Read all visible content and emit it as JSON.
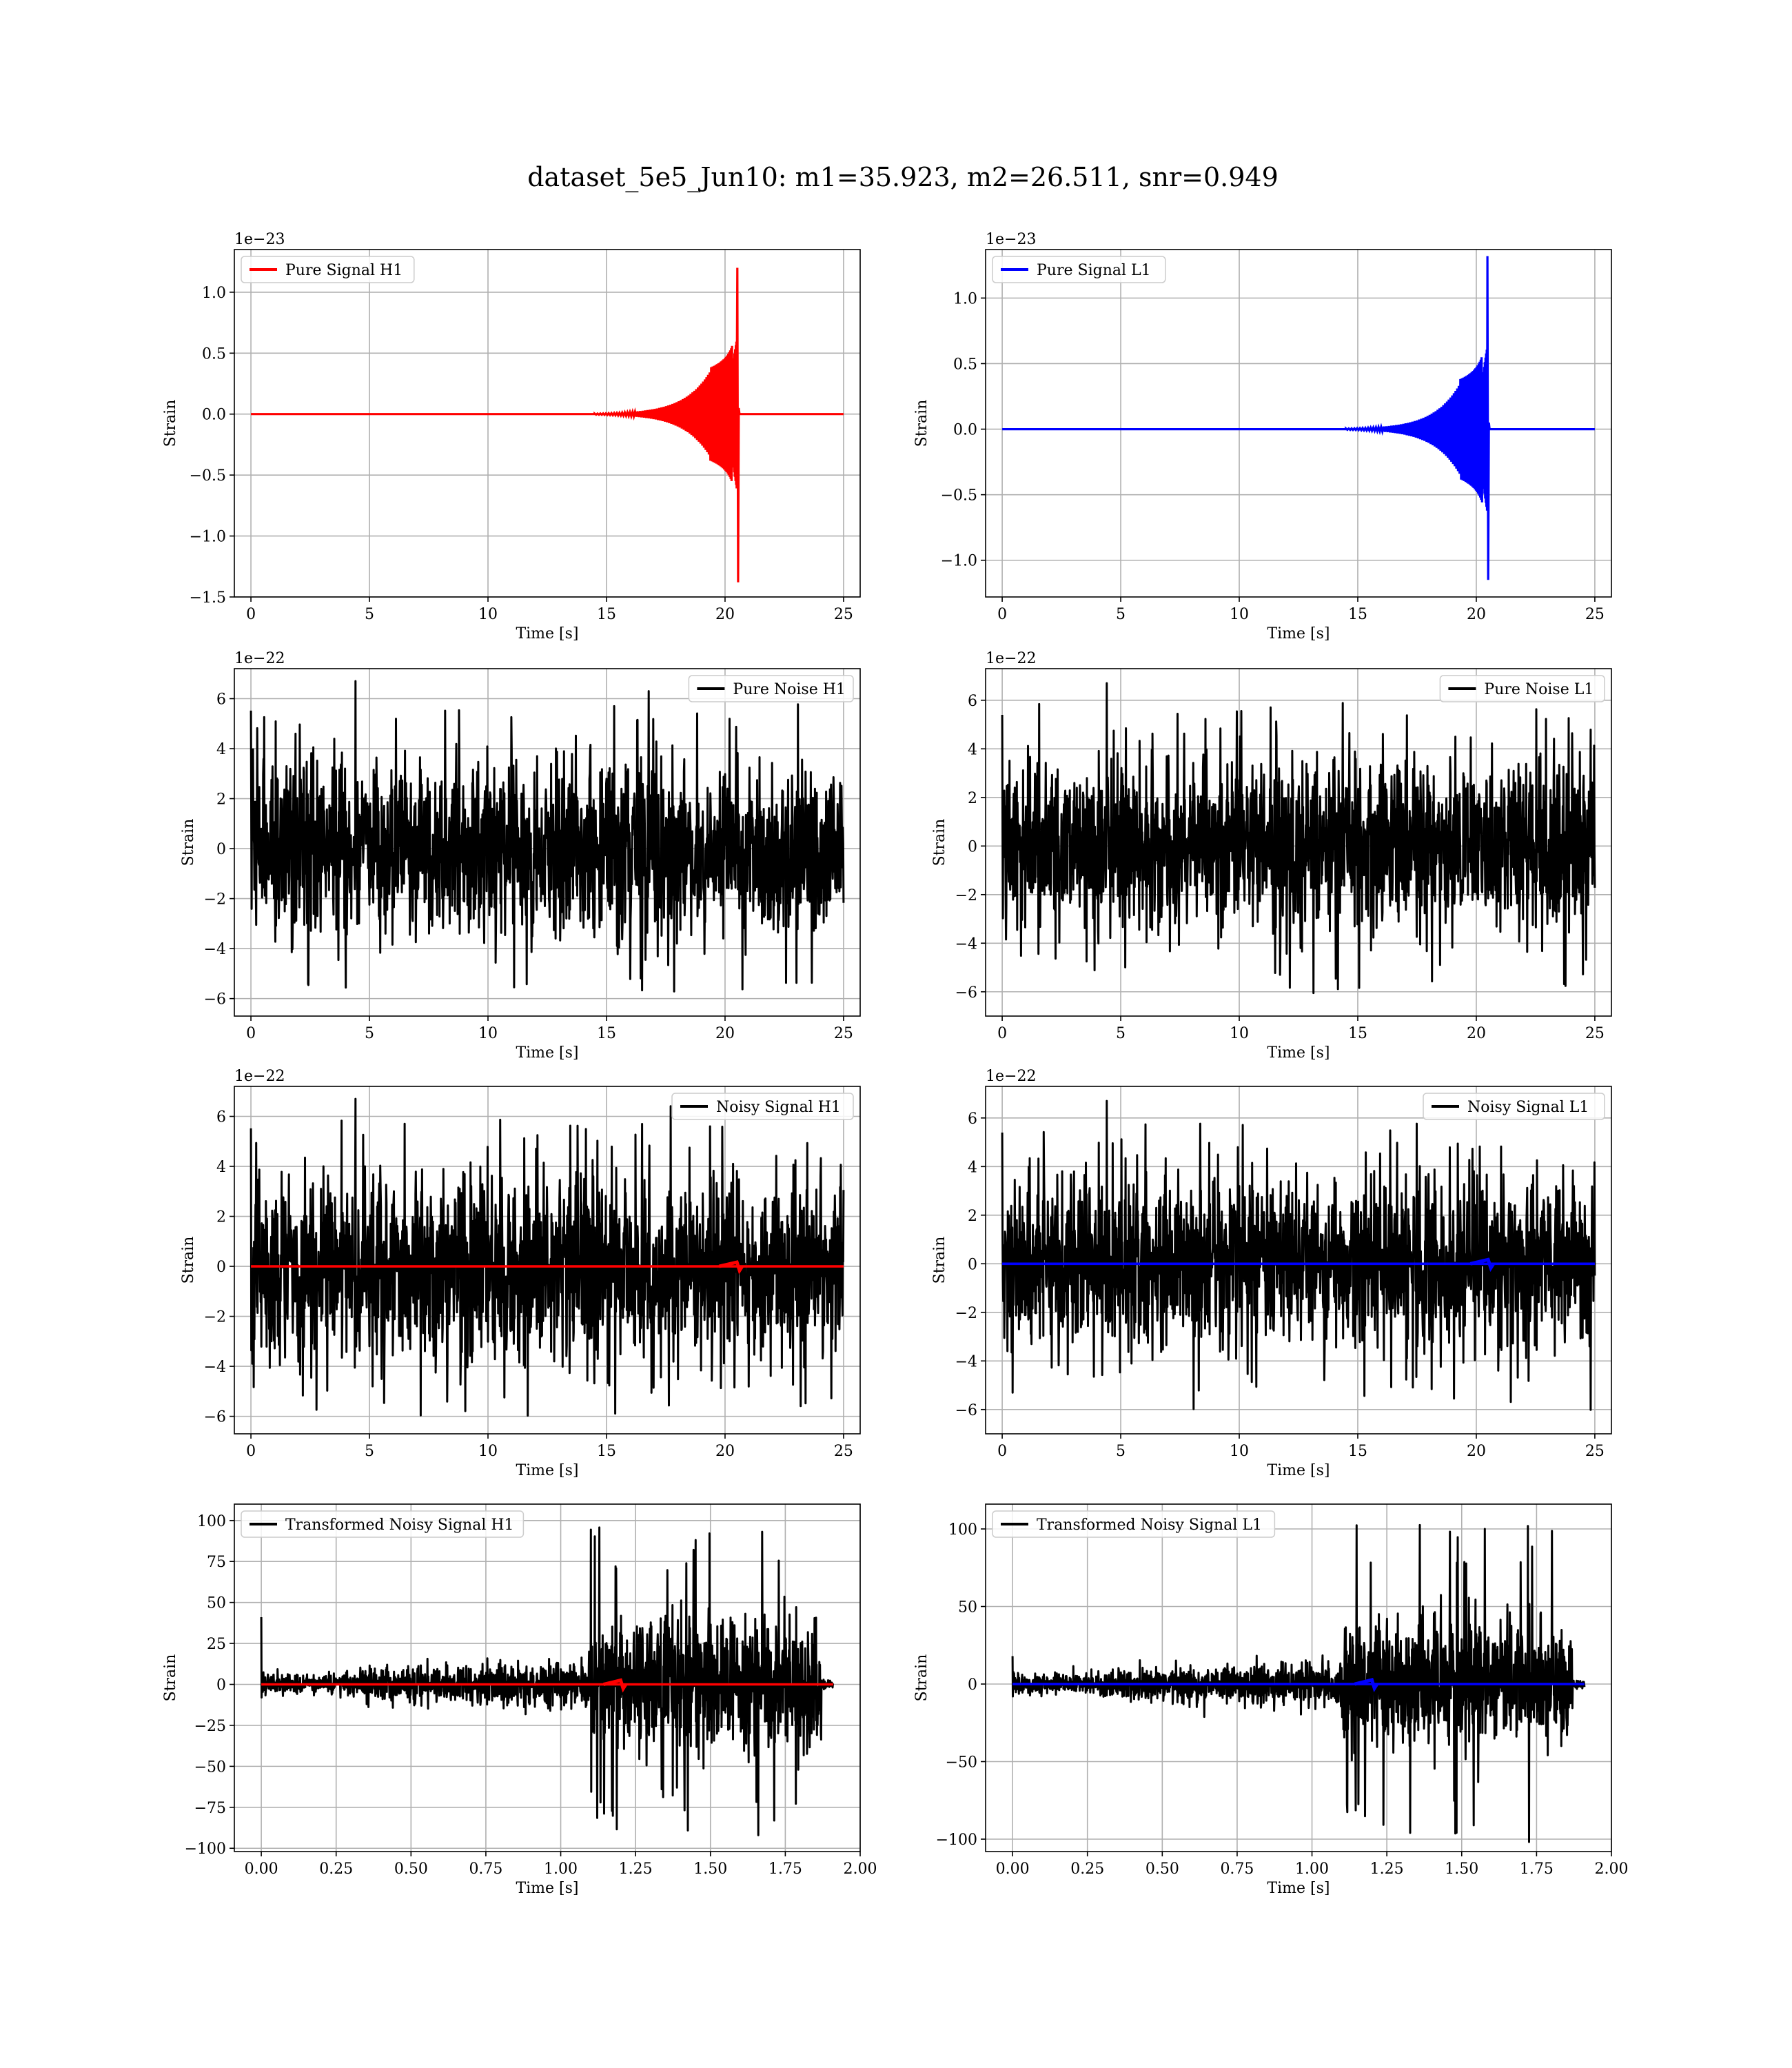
{
  "figure": {
    "title": "dataset_5e5_Jun10: m1=35.923, m2=26.511, snr=0.949"
  },
  "colors": {
    "h1_signal": "#ff0000",
    "l1_signal": "#0000ff",
    "noise": "#000000",
    "grid": "#b0b0b0",
    "frame": "#000000"
  },
  "chart_data": [
    {
      "id": "pure-signal-h1",
      "type": "line",
      "xlabel": "Time [s]",
      "ylabel": "Strain",
      "offset_text": "1e−23",
      "xlim": [
        -0.7,
        25.7
      ],
      "ylim": [
        -1.5,
        1.35
      ],
      "xticks": [
        0,
        5,
        10,
        15,
        20,
        25
      ],
      "xtick_labels": [
        "0",
        "5",
        "10",
        "15",
        "20",
        "25"
      ],
      "yticks": [
        -1.5,
        -1.0,
        -0.5,
        0.0,
        0.5,
        1.0
      ],
      "ytick_labels": [
        "−1.5",
        "−1.0",
        "−0.5",
        "0.0",
        "0.5",
        "1.0"
      ],
      "grid": true,
      "legend_position": "upper-left",
      "series": [
        {
          "name": "Pure Signal H1",
          "color": "#ff0000",
          "kind": "chirp",
          "x_range": [
            0,
            25
          ],
          "merger_time": 20.55,
          "peak_pos": 1.2,
          "peak_neg": -1.38,
          "envelope_mid": 0.38
        }
      ]
    },
    {
      "id": "pure-signal-l1",
      "type": "line",
      "xlabel": "Time [s]",
      "ylabel": "Strain",
      "offset_text": "1e−23",
      "xlim": [
        -0.7,
        25.7
      ],
      "ylim": [
        -1.28,
        1.37
      ],
      "xticks": [
        0,
        5,
        10,
        15,
        20,
        25
      ],
      "xtick_labels": [
        "0",
        "5",
        "10",
        "15",
        "20",
        "25"
      ],
      "yticks": [
        -1.0,
        -0.5,
        0.0,
        0.5,
        1.0
      ],
      "ytick_labels": [
        "−1.0",
        "−0.5",
        "0.0",
        "0.5",
        "1.0"
      ],
      "grid": true,
      "legend_position": "upper-left",
      "series": [
        {
          "name": "Pure Signal L1",
          "color": "#0000ff",
          "kind": "chirp",
          "x_range": [
            0,
            25
          ],
          "merger_time": 20.5,
          "peak_pos": 1.32,
          "peak_neg": -1.15,
          "envelope_mid": 0.38
        }
      ]
    },
    {
      "id": "pure-noise-h1",
      "type": "line",
      "xlabel": "Time [s]",
      "ylabel": "Strain",
      "offset_text": "1e−22",
      "xlim": [
        -0.7,
        25.7
      ],
      "ylim": [
        -6.7,
        7.2
      ],
      "xticks": [
        0,
        5,
        10,
        15,
        20,
        25
      ],
      "xtick_labels": [
        "0",
        "5",
        "10",
        "15",
        "20",
        "25"
      ],
      "yticks": [
        -6,
        -4,
        -2,
        0,
        2,
        4,
        6
      ],
      "ytick_labels": [
        "−6",
        "−4",
        "−2",
        "0",
        "2",
        "4",
        "6"
      ],
      "grid": true,
      "legend_position": "upper-right",
      "series": [
        {
          "name": "Pure Noise H1",
          "color": "#000000",
          "kind": "noise",
          "x_range": [
            0,
            25
          ],
          "typical_max": 4.6,
          "extreme_max": 6.7,
          "extreme_min": -6.0
        }
      ]
    },
    {
      "id": "pure-noise-l1",
      "type": "line",
      "xlabel": "Time [s]",
      "ylabel": "Strain",
      "offset_text": "1e−22",
      "xlim": [
        -0.7,
        25.7
      ],
      "ylim": [
        -7.0,
        7.3
      ],
      "xticks": [
        0,
        5,
        10,
        15,
        20,
        25
      ],
      "xtick_labels": [
        "0",
        "5",
        "10",
        "15",
        "20",
        "25"
      ],
      "yticks": [
        -6,
        -4,
        -2,
        0,
        2,
        4,
        6
      ],
      "ytick_labels": [
        "−6",
        "−4",
        "−2",
        "0",
        "2",
        "4",
        "6"
      ],
      "grid": true,
      "legend_position": "upper-right",
      "series": [
        {
          "name": "Pure Noise L1",
          "color": "#000000",
          "kind": "noise",
          "x_range": [
            0,
            25
          ],
          "typical_max": 4.5,
          "extreme_max": 6.7,
          "extreme_min": -6.3
        }
      ]
    },
    {
      "id": "noisy-signal-h1",
      "type": "line",
      "xlabel": "Time [s]",
      "ylabel": "Strain",
      "offset_text": "1e−22",
      "xlim": [
        -0.7,
        25.7
      ],
      "ylim": [
        -6.7,
        7.2
      ],
      "xticks": [
        0,
        5,
        10,
        15,
        20,
        25
      ],
      "xtick_labels": [
        "0",
        "5",
        "10",
        "15",
        "20",
        "25"
      ],
      "yticks": [
        -6,
        -4,
        -2,
        0,
        2,
        4,
        6
      ],
      "ytick_labels": [
        "−6",
        "−4",
        "−2",
        "0",
        "2",
        "4",
        "6"
      ],
      "grid": true,
      "legend_position": "upper-right",
      "series": [
        {
          "name": "Noisy Signal H1",
          "color": "#000000",
          "kind": "noise",
          "x_range": [
            0,
            25
          ],
          "typical_max": 4.6,
          "extreme_max": 6.7,
          "extreme_min": -6.0
        },
        {
          "name": "",
          "color": "#ff0000",
          "kind": "flat-signal",
          "x_range": [
            0,
            25
          ],
          "merger_time": 20.5
        }
      ]
    },
    {
      "id": "noisy-signal-l1",
      "type": "line",
      "xlabel": "Time [s]",
      "ylabel": "Strain",
      "offset_text": "1e−22",
      "xlim": [
        -0.7,
        25.7
      ],
      "ylim": [
        -7.0,
        7.3
      ],
      "xticks": [
        0,
        5,
        10,
        15,
        20,
        25
      ],
      "xtick_labels": [
        "0",
        "5",
        "10",
        "15",
        "20",
        "25"
      ],
      "yticks": [
        -6,
        -4,
        -2,
        0,
        2,
        4,
        6
      ],
      "ytick_labels": [
        "−6",
        "−4",
        "−2",
        "0",
        "2",
        "4",
        "6"
      ],
      "grid": true,
      "legend_position": "upper-right",
      "series": [
        {
          "name": "Noisy Signal L1",
          "color": "#000000",
          "kind": "noise",
          "x_range": [
            0,
            25
          ],
          "typical_max": 4.5,
          "extreme_max": 6.7,
          "extreme_min": -6.3
        },
        {
          "name": "",
          "color": "#0000ff",
          "kind": "flat-signal",
          "x_range": [
            0,
            25
          ],
          "merger_time": 20.5
        }
      ]
    },
    {
      "id": "transformed-noisy-signal-h1",
      "type": "line",
      "xlabel": "Time [s]",
      "ylabel": "Strain",
      "offset_text": "",
      "xlim": [
        -0.09,
        2.0
      ],
      "ylim": [
        -102,
        110
      ],
      "xticks": [
        0.0,
        0.25,
        0.5,
        0.75,
        1.0,
        1.25,
        1.5,
        1.75,
        2.0
      ],
      "xtick_labels": [
        "0.00",
        "0.25",
        "0.50",
        "0.75",
        "1.00",
        "1.25",
        "1.50",
        "1.75",
        "2.00"
      ],
      "yticks": [
        -100,
        -75,
        -50,
        -25,
        0,
        25,
        50,
        75,
        100
      ],
      "ytick_labels": [
        "−100",
        "−75",
        "−50",
        "−25",
        "0",
        "25",
        "50",
        "75",
        "100"
      ],
      "grid": true,
      "legend_position": "upper-left",
      "series": [
        {
          "name": "Transformed Noisy Signal H1",
          "color": "#000000",
          "kind": "whitened",
          "x_range": [
            0,
            1.91
          ],
          "low_amp": 8,
          "high_amp": 65,
          "burst_start": 1.1,
          "burst_end": 1.87,
          "peak_max": 101,
          "peak_min": -93,
          "initial_spike": 41
        },
        {
          "name": "",
          "color": "#ff0000",
          "kind": "flat-signal",
          "x_range": [
            0,
            1.91
          ],
          "merger_time": 1.2
        }
      ]
    },
    {
      "id": "transformed-noisy-signal-l1",
      "type": "line",
      "xlabel": "Time [s]",
      "ylabel": "Strain",
      "offset_text": "",
      "xlim": [
        -0.09,
        2.0
      ],
      "ylim": [
        -108,
        116
      ],
      "xticks": [
        0.0,
        0.25,
        0.5,
        0.75,
        1.0,
        1.25,
        1.5,
        1.75,
        2.0
      ],
      "xtick_labels": [
        "0.00",
        "0.25",
        "0.50",
        "0.75",
        "1.00",
        "1.25",
        "1.50",
        "1.75",
        "2.00"
      ],
      "yticks": [
        -100,
        -50,
        0,
        50,
        100
      ],
      "ytick_labels": [
        "−100",
        "−50",
        "0",
        "50",
        "100"
      ],
      "grid": true,
      "legend_position": "upper-left",
      "series": [
        {
          "name": "Transformed Noisy Signal L1",
          "color": "#000000",
          "kind": "whitened",
          "x_range": [
            0,
            1.91
          ],
          "low_amp": 8,
          "high_amp": 65,
          "burst_start": 1.1,
          "burst_end": 1.87,
          "peak_max": 108,
          "peak_min": -105,
          "initial_spike": 18
        },
        {
          "name": "",
          "color": "#0000ff",
          "kind": "flat-signal",
          "x_range": [
            0,
            1.91
          ],
          "merger_time": 1.2
        }
      ]
    }
  ]
}
